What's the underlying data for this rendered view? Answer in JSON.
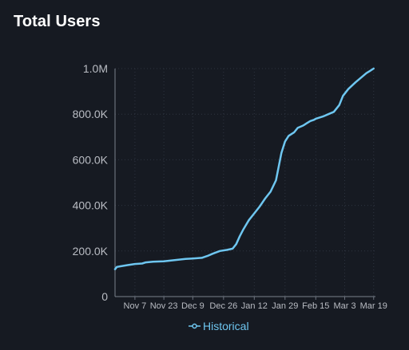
{
  "widget": {
    "title": "Total Users"
  },
  "colors": {
    "background": "#161a22",
    "series": "#6ec6f0",
    "axis_text": "#b9bcc3",
    "grid": "#2e3440"
  },
  "legend": {
    "label": "Historical",
    "icon": "line-with-circle-marker-icon",
    "placement": "bottom-center"
  },
  "chart_data": {
    "type": "line",
    "title": "Total Users",
    "xlabel": "",
    "ylabel": "",
    "grid": true,
    "legend_position": "bottom",
    "x_ticks": [
      "Nov 7",
      "Nov 23",
      "Dec 9",
      "Dec 26",
      "Jan 12",
      "Jan 29",
      "Feb 15",
      "Mar 3",
      "Mar 19"
    ],
    "y_ticks": [
      "0",
      "200.0K",
      "400.0K",
      "600.0K",
      "800.0K",
      "1.0M"
    ],
    "xlim": [
      "2021-10-27",
      "2022-03-20"
    ],
    "ylim": [
      0,
      1000000
    ],
    "series": [
      {
        "name": "Historical",
        "x": [
          "2021-10-27",
          "2021-10-28",
          "2021-10-30",
          "2021-11-03",
          "2021-11-07",
          "2021-11-11",
          "2021-11-13",
          "2021-11-17",
          "2021-11-23",
          "2021-11-29",
          "2021-12-05",
          "2021-12-09",
          "2021-12-14",
          "2021-12-17",
          "2021-12-20",
          "2021-12-24",
          "2021-12-28",
          "2021-12-31",
          "2022-01-02",
          "2022-01-04",
          "2022-01-06",
          "2022-01-09",
          "2022-01-12",
          "2022-01-15",
          "2022-01-18",
          "2022-01-21",
          "2022-01-24",
          "2022-01-27",
          "2022-01-29",
          "2022-01-31",
          "2022-02-01",
          "2022-02-03",
          "2022-02-05",
          "2022-02-08",
          "2022-02-10",
          "2022-02-12",
          "2022-02-14",
          "2022-02-15",
          "2022-02-19",
          "2022-02-22",
          "2022-02-25",
          "2022-02-28",
          "2022-03-02",
          "2022-03-05",
          "2022-03-09",
          "2022-03-12",
          "2022-03-15",
          "2022-03-17",
          "2022-03-19"
        ],
        "y": [
          120000,
          130000,
          133000,
          138000,
          143000,
          145000,
          150000,
          153000,
          155000,
          160000,
          165000,
          167000,
          170000,
          178000,
          188000,
          200000,
          205000,
          210000,
          230000,
          265000,
          295000,
          335000,
          365000,
          395000,
          430000,
          460000,
          510000,
          630000,
          680000,
          705000,
          710000,
          720000,
          740000,
          750000,
          760000,
          770000,
          775000,
          780000,
          790000,
          800000,
          810000,
          840000,
          880000,
          910000,
          940000,
          960000,
          980000,
          990000,
          1000000
        ]
      }
    ]
  }
}
